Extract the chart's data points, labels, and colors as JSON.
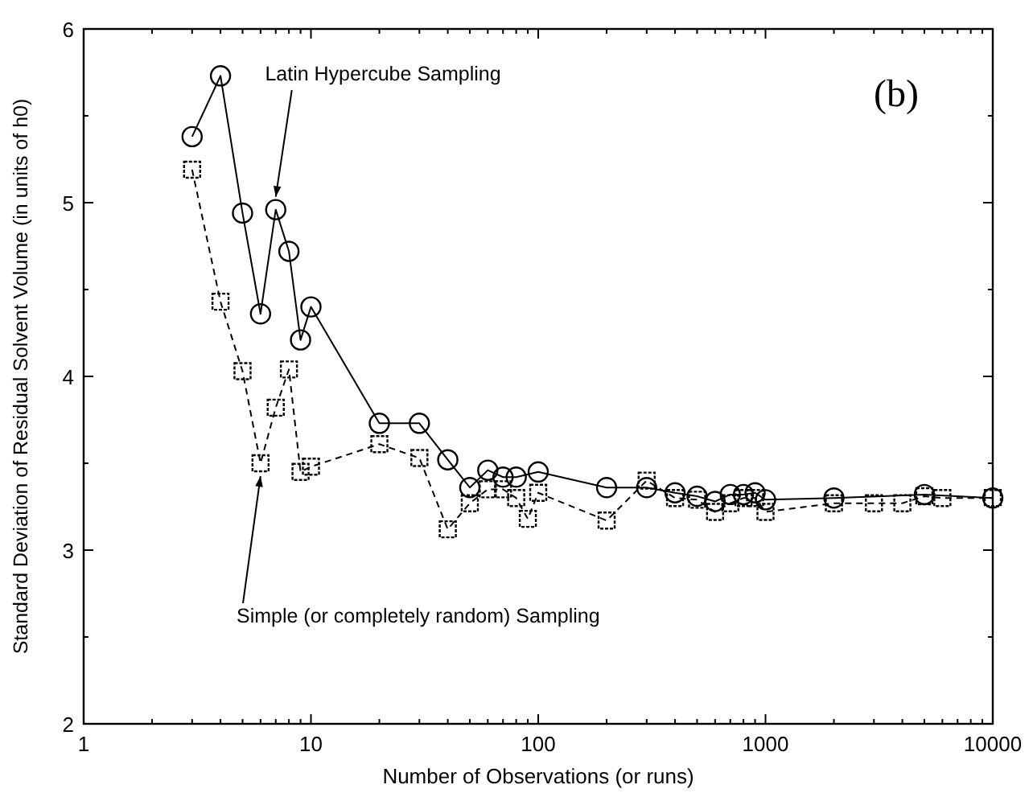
{
  "chart_data": {
    "type": "line",
    "xlabel": "Number of Observations (or runs)",
    "ylabel": "Standard Deviation of Residual Solvent Volume (in units of h0)",
    "log": "x",
    "xlim": [
      1,
      10000
    ],
    "ylim": [
      2,
      6
    ],
    "xticks": [
      1,
      {
        "value": 2,
        "label": null
      },
      {
        "value": 3,
        "label": null
      },
      {
        "value": 4,
        "label": null
      },
      {
        "value": 5,
        "label": null
      },
      {
        "value": 6,
        "label": null
      },
      {
        "value": 7,
        "label": null
      },
      {
        "value": 8,
        "label": null
      },
      {
        "value": 9,
        "label": null
      },
      10,
      {
        "value": 20,
        "label": null
      },
      {
        "value": 30,
        "label": null
      },
      {
        "value": 40,
        "label": null
      },
      {
        "value": 50,
        "label": null
      },
      {
        "value": 60,
        "label": null
      },
      {
        "value": 70,
        "label": null
      },
      {
        "value": 80,
        "label": null
      },
      {
        "value": 90,
        "label": null
      },
      100,
      {
        "value": 200,
        "label": null
      },
      {
        "value": 300,
        "label": null
      },
      {
        "value": 400,
        "label": null
      },
      {
        "value": 500,
        "label": null
      },
      {
        "value": 600,
        "label": null
      },
      {
        "value": 700,
        "label": null
      },
      {
        "value": 800,
        "label": null
      },
      {
        "value": 900,
        "label": null
      },
      1000,
      {
        "value": 2000,
        "label": null
      },
      {
        "value": 3000,
        "label": null
      },
      {
        "value": 4000,
        "label": null
      },
      {
        "value": 5000,
        "label": null
      },
      {
        "value": 6000,
        "label": null
      },
      {
        "value": 7000,
        "label": null
      },
      {
        "value": 8000,
        "label": null
      },
      {
        "value": 9000,
        "label": null
      },
      10000
    ],
    "yticks": [
      2,
      {
        "value": 2.5,
        "label": null
      },
      3,
      {
        "value": 3.5,
        "label": null
      },
      4,
      {
        "value": 4.5,
        "label": null
      },
      5,
      {
        "value": 5.5,
        "label": null
      },
      6
    ],
    "grid": false,
    "legend": "top",
    "series": [
      {
        "name": "Latin Hypercube Sampling",
        "color": "#000000",
        "marker": "circle",
        "line_style": "solid",
        "x": [
          3,
          4,
          5,
          6,
          7,
          8,
          9,
          10,
          20,
          30,
          40,
          50,
          60,
          70,
          80,
          100,
          200,
          300,
          400,
          500,
          600,
          700,
          800,
          900,
          1000,
          2000,
          5000,
          10000
        ],
        "values": [
          5.38,
          5.73,
          4.94,
          4.36,
          4.96,
          4.72,
          4.21,
          4.4,
          3.73,
          3.73,
          3.52,
          3.36,
          3.46,
          3.42,
          3.42,
          3.45,
          3.36,
          3.36,
          3.33,
          3.31,
          3.28,
          3.32,
          3.32,
          3.33,
          3.29,
          3.3,
          3.32,
          3.3
        ]
      },
      {
        "name": "Simple (or completely random) Sampling",
        "color": "#000000",
        "marker": "square",
        "line_style": "dashed",
        "x": [
          3,
          4,
          5,
          6,
          7,
          8,
          9,
          10,
          20,
          30,
          40,
          50,
          60,
          70,
          80,
          90,
          100,
          200,
          300,
          400,
          500,
          600,
          700,
          800,
          900,
          1000,
          2000,
          3000,
          4000,
          5000,
          6000,
          10000
        ],
        "values": [
          5.19,
          4.43,
          4.03,
          3.5,
          3.82,
          4.04,
          3.45,
          3.48,
          3.61,
          3.53,
          3.12,
          3.27,
          3.35,
          3.35,
          3.3,
          3.18,
          3.33,
          3.17,
          3.4,
          3.3,
          3.29,
          3.22,
          3.27,
          3.3,
          3.3,
          3.22,
          3.27,
          3.27,
          3.27,
          3.31,
          3.3,
          3.3
        ]
      }
    ],
    "annotations": [
      "(b)"
    ]
  }
}
